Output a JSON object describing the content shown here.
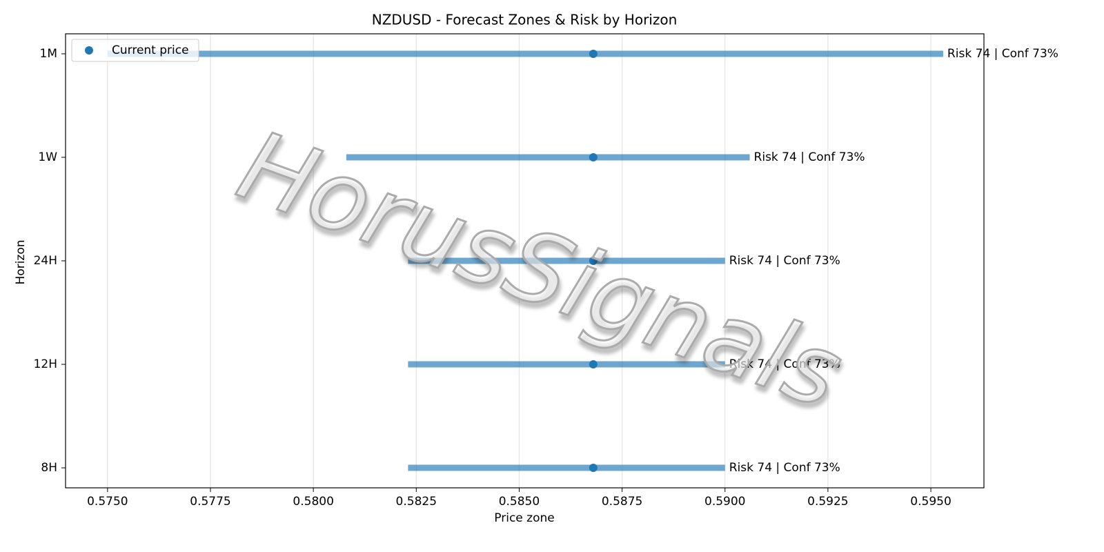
{
  "chart_data": {
    "type": "range",
    "title": "NZDUSD - Forecast Zones & Risk by Horizon",
    "xlabel": "Price zone",
    "ylabel": "Horizon",
    "watermark": "HorusSignals",
    "categories": [
      "8H",
      "12H",
      "24H",
      "1W",
      "1M"
    ],
    "low": [
      0.5823,
      0.5823,
      0.5823,
      0.5808,
      0.575
    ],
    "high": [
      0.59,
      0.59,
      0.59,
      0.5906,
      0.5953
    ],
    "range_color": "#1f77b4",
    "current": {
      "name": "Current price",
      "color": "#1f77b4",
      "values": [
        0.5868,
        0.5868,
        0.5868,
        0.5868,
        0.5868
      ]
    },
    "annotations": [
      "Risk 74 | Conf 73%",
      "Risk 74 | Conf 73%",
      "Risk 74 | Conf 73%",
      "Risk 74 | Conf 73%",
      "Risk 74 | Conf 73%"
    ],
    "xlim": [
      0.57398,
      0.59629
    ],
    "xticks": [
      {
        "value": 0.575,
        "label": "0.5750"
      },
      0.5775,
      {
        "value": 0.58,
        "label": "0.5800"
      },
      0.5825,
      {
        "value": 0.585,
        "label": "0.5850"
      },
      0.5875,
      {
        "value": 0.59,
        "label": "0.5900"
      },
      0.5925,
      {
        "value": 0.595,
        "label": "0.5950"
      }
    ],
    "grid": true,
    "legend": "upper left"
  }
}
